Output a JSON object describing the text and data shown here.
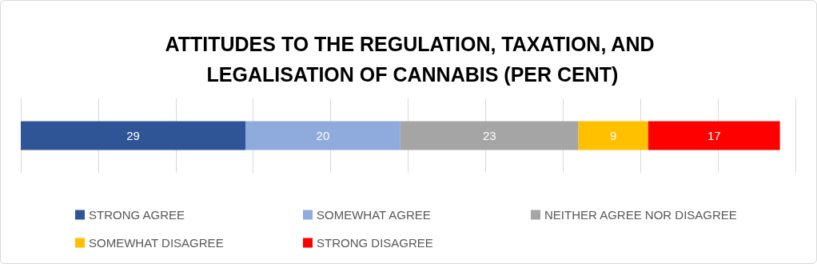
{
  "chart_data": {
    "type": "bar",
    "title": "ATTITUDES TO THE REGULATION, TAXATION, AND LEGALISATION OF CANNABIS (PER CENT)",
    "orientation": "horizontal",
    "stacked": true,
    "categories": [
      null
    ],
    "series": [
      {
        "name": "STRONG AGREE",
        "color": "#2f5597",
        "values": [
          29
        ]
      },
      {
        "name": "SOMEWHAT AGREE",
        "color": "#8faadc",
        "values": [
          20
        ]
      },
      {
        "name": "NEITHER AGREE NOR DISAGREE",
        "color": "#a5a5a5",
        "values": [
          23
        ]
      },
      {
        "name": "SOMEWHAT DISAGREE",
        "color": "#ffc000",
        "values": [
          9
        ]
      },
      {
        "name": "STRONG DISAGREE",
        "color": "#ff0000",
        "values": [
          17
        ]
      }
    ],
    "xlim": [
      0,
      100
    ],
    "xticks": [
      0,
      10,
      20,
      30,
      40,
      50,
      60,
      70,
      80,
      90,
      100
    ],
    "grid": "x",
    "tick_labels": false,
    "data_labels": true,
    "legend": "bottom"
  }
}
